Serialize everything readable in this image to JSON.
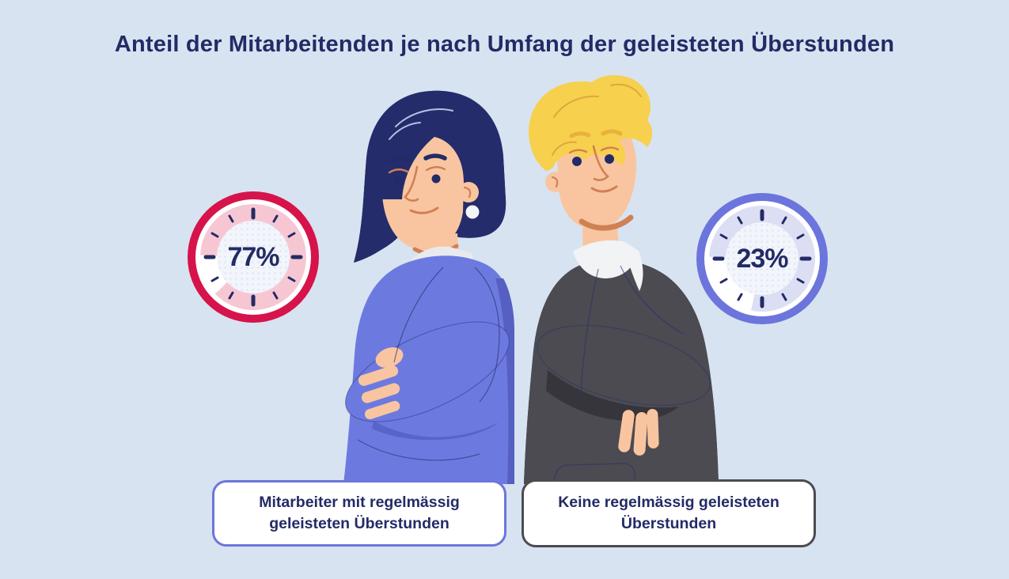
{
  "title": "Anteil der Mitarbeitenden je nach Umfang der geleisteten Überstunden",
  "gauges": [
    {
      "name": "regular-overtime",
      "value": 77,
      "value_label": "77%",
      "ring_color": "#D6134B",
      "fill_color": "#F6C7D3",
      "gap_start_deg": 226,
      "gap_end_deg": 272,
      "tick_color": "#232B66",
      "center_bg": "#F2F5FB",
      "text_color": "#232B66"
    },
    {
      "name": "no-regular-overtime",
      "value": 23,
      "value_label": "23%",
      "ring_color": "#6C75DC",
      "fill_color": "#DCDFF4",
      "gap_start_deg": 192,
      "gap_end_deg": 272,
      "tick_color": "#232B66",
      "center_bg": "#F2F5FB",
      "text_color": "#232B66"
    }
  ],
  "captions": [
    {
      "text": "Mitarbeiter mit regelmässig geleisteten Überstunden",
      "border_color": "#6C75DC",
      "text_color": "#232B66",
      "background": "#FFFFFF"
    },
    {
      "text": "Keine regelmässig geleisteten Überstunden",
      "border_color": "#4B4B51",
      "text_color": "#232B66",
      "background": "#FFFFFF"
    }
  ],
  "palette": {
    "background": "#D8E3F1",
    "title_color": "#232B66",
    "woman_suit": "#6C7AE0",
    "woman_suit_shadow": "#5560C2",
    "woman_hair": "#252C6B",
    "man_suit": "#4B4B51",
    "man_suit_shadow": "#35353B",
    "man_hair": "#F7D04E",
    "skin": "#F9C5A0",
    "skin_line": "#D08054",
    "collar": "#EDEEF1"
  },
  "illustration": {
    "description": "Two office workers standing back to back with arms crossed",
    "left_person": "woman with dark navy bob haircut, pearl earring, periwinkle blue suit",
    "right_person": "blond man in dark gray suit with white shirt collar"
  },
  "chart_data": {
    "type": "pie",
    "title": "Anteil der Mitarbeitenden je nach Umfang der geleisteten Überstunden",
    "categories": [
      "Mitarbeiter mit regelmässig geleisteten Überstunden",
      "Keine regelmässig geleisteten Überstunden"
    ],
    "values": [
      77,
      23
    ],
    "unit": "%",
    "colors": [
      "#D6134B",
      "#6C75DC"
    ],
    "legend_position": "bottom",
    "style": "two clock-face gauges beside back-to-back figures"
  }
}
